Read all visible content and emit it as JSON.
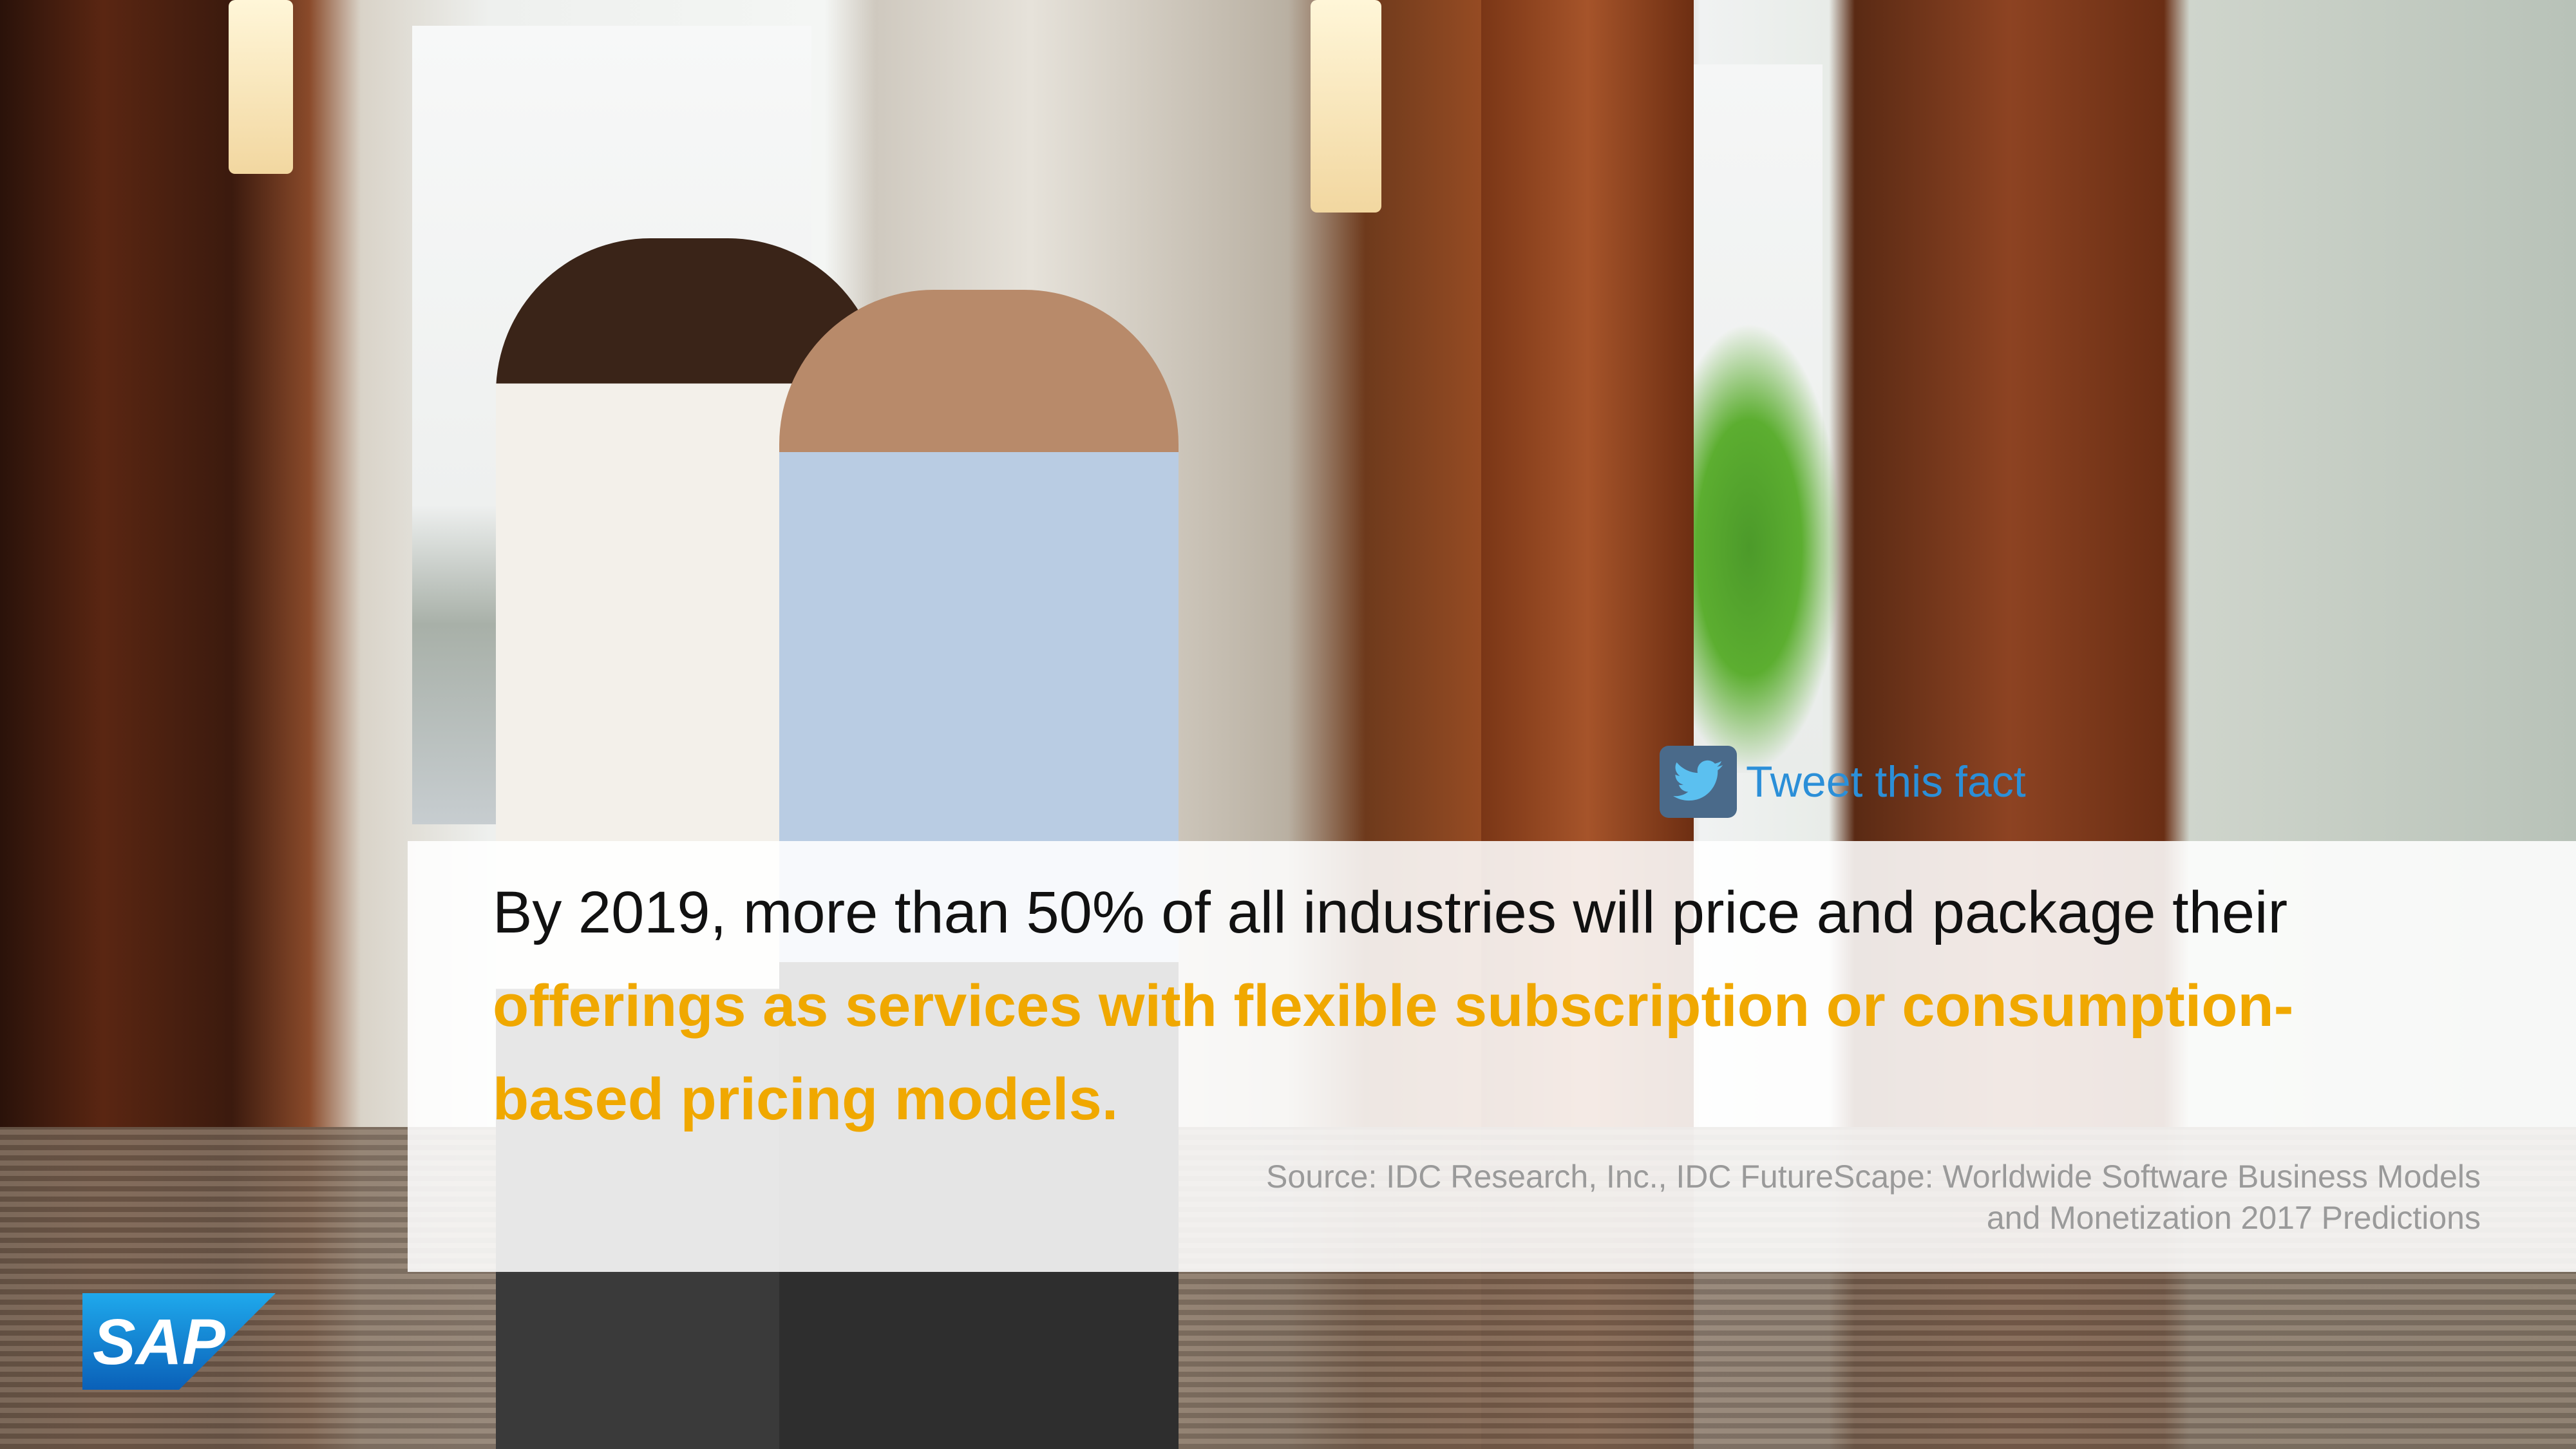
{
  "quote": {
    "lead": "By 2019, more than 50% of all industries will price and package their ",
    "highlight": "offerings as services with flexible subscription or consumption-based pricing models."
  },
  "source": {
    "lines": [
      "Source: IDC Research, Inc., IDC FutureScape: Worldwide Software Business Models",
      "and Monetization 2017 Predictions"
    ]
  },
  "tweet": {
    "label": "Tweet this fact"
  },
  "logo": {
    "text": "SAP"
  }
}
